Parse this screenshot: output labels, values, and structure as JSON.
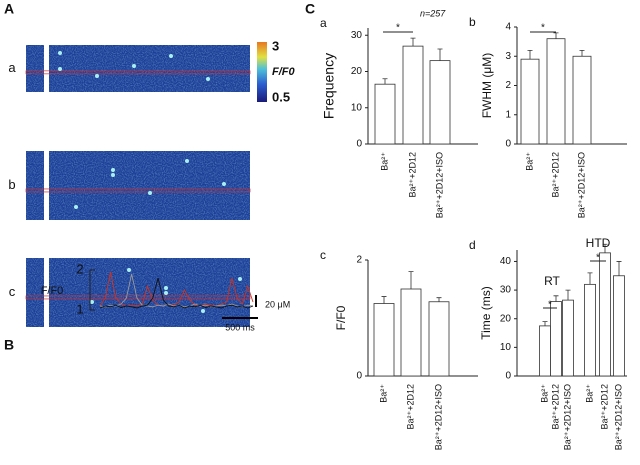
{
  "figure": {
    "panel_labels": [
      "A",
      "B",
      "C"
    ],
    "image_labels": [
      "a",
      "b",
      "c"
    ],
    "colorbar": {
      "ticks": [
        3,
        0.5
      ],
      "label": "F/F0"
    },
    "scale_y": "20 μM",
    "scale_x": "500 ms"
  },
  "chart_data": [
    {
      "type": "line",
      "ylabel": "F/F0",
      "ylim": [
        1,
        2
      ],
      "yticks": [
        1,
        2
      ],
      "xlim": [
        0,
        29
      ],
      "x": [
        0,
        1,
        2,
        3,
        4,
        5,
        6,
        7,
        8,
        9,
        10,
        11,
        12,
        13,
        14,
        15,
        16,
        17,
        18,
        19,
        20,
        21,
        22,
        23,
        24,
        25,
        26,
        27,
        28,
        29
      ],
      "series": [
        {
          "color": "#d0321e",
          "values": [
            1.1,
            1.3,
            1.95,
            1.3,
            1.15,
            1.1,
            1.12,
            1.1,
            1.15,
            1.6,
            1.25,
            1.12,
            1.1,
            1.15,
            1.12,
            1.2,
            1.5,
            1.25,
            1.12,
            1.1,
            1.15,
            1.12,
            1.1,
            1.15,
            1.2,
            1.8,
            1.3,
            1.15,
            1.6,
            1.2
          ]
        },
        {
          "color": "#9a9a9a",
          "values": [
            1.1,
            1.08,
            1.12,
            1.1,
            1.15,
            1.3,
            1.9,
            1.3,
            1.12,
            1.1,
            1.08,
            1.12,
            1.1,
            1.15,
            1.1,
            1.12,
            1.08,
            1.1,
            1.15,
            1.1,
            1.12,
            1.08,
            1.1,
            1.12,
            1.1,
            1.15,
            1.1,
            1.08,
            1.12,
            1.1
          ]
        },
        {
          "color": "#111111",
          "values": [
            1.05,
            1.1,
            1.08,
            1.12,
            1.06,
            1.1,
            1.08,
            1.05,
            1.1,
            1.12,
            1.3,
            1.8,
            1.25,
            1.1,
            1.08,
            1.12,
            1.05,
            1.1,
            1.08,
            1.12,
            1.06,
            1.1,
            1.08,
            1.05,
            1.1,
            1.12,
            1.08,
            1.1,
            1.05,
            1.1
          ]
        }
      ]
    },
    {
      "type": "bar",
      "label": "a",
      "ylabel": "Frequency",
      "ylim": [
        0,
        32
      ],
      "yticks": [
        0,
        10,
        20,
        30
      ],
      "categories": [
        "Ba²⁺",
        "Ba²⁺+2D12",
        "Ba²⁺+2D12+ISO"
      ],
      "values": [
        16.5,
        27,
        23
      ],
      "errors": [
        1.5,
        2.2,
        3.2
      ],
      "color": "#ffffff",
      "annotations": [
        "n=257",
        "*"
      ]
    },
    {
      "type": "bar",
      "label": "b",
      "ylabel": "FWHM (μM)",
      "ylim": [
        0,
        4
      ],
      "yticks": [
        0,
        1,
        2,
        3,
        4
      ],
      "categories": [
        "Ba²⁺",
        "Ba²⁺+2D12",
        "Ba²⁺+2D12+ISO"
      ],
      "values": [
        2.9,
        3.6,
        3.0
      ],
      "errors": [
        0.3,
        0.2,
        0.2
      ],
      "color": "#ffffff",
      "annotations": [
        "*"
      ]
    },
    {
      "type": "bar",
      "label": "c",
      "ylabel": "F/F0",
      "ylim": [
        0,
        2
      ],
      "yticks": [
        0,
        2
      ],
      "categories": [
        "Ba²⁺",
        "Ba²⁺+2D12",
        "Ba²⁺+2D12+ISO"
      ],
      "values": [
        1.25,
        1.5,
        1.28
      ],
      "errors": [
        0.12,
        0.3,
        0.07
      ],
      "color": "#ffffff",
      "annotations": []
    },
    {
      "type": "groupbar",
      "label": "d",
      "ylabel": "Time (ms)",
      "ylim": [
        0,
        44
      ],
      "yticks": [
        0,
        10,
        20,
        30,
        40
      ],
      "categories": [
        "RT",
        "HTD"
      ],
      "color": "#ffffff",
      "series": [
        {
          "name": "Ba²⁺",
          "values": [
            17.5,
            32
          ],
          "errors": [
            1.5,
            4
          ]
        },
        {
          "name": "Ba²⁺+2D12",
          "values": [
            26,
            43
          ],
          "errors": [
            2,
            3
          ]
        },
        {
          "name": "Ba²⁺+2D12+ISO",
          "values": [
            26.5,
            35
          ],
          "errors": [
            3.5,
            5
          ]
        }
      ],
      "annotations": [
        "*",
        "*"
      ]
    }
  ]
}
